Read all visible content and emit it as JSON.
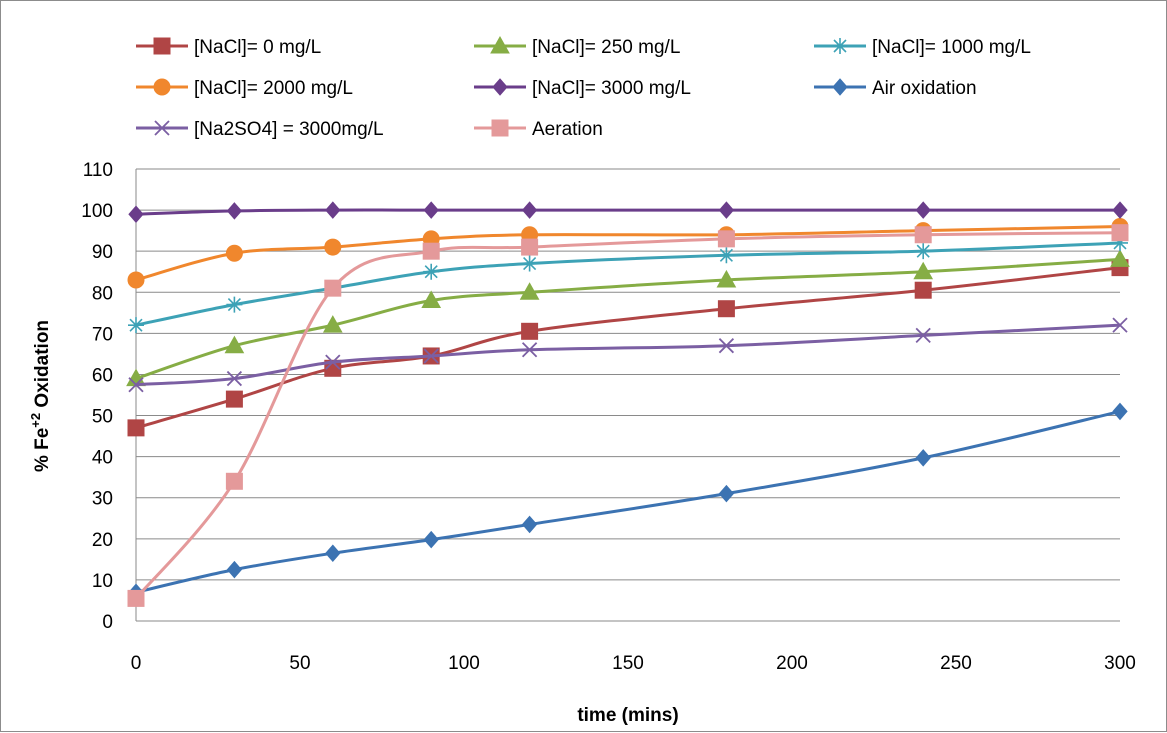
{
  "chart_data": {
    "type": "line",
    "xlabel": "time (mins)",
    "ylabel_main": "% Fe",
    "ylabel_sup": "+2",
    "ylabel_rest": " Oxidation",
    "xlim": [
      0,
      300
    ],
    "ylim": [
      0,
      110
    ],
    "xticks": [
      0,
      50,
      100,
      150,
      200,
      250,
      300
    ],
    "yticks": [
      0,
      10,
      20,
      30,
      40,
      50,
      60,
      70,
      80,
      90,
      100,
      110
    ],
    "grid": "horizontal",
    "legend_position": "top",
    "series": [
      {
        "name": "[NaCl]= 0 mg/L",
        "color": "#b04545",
        "marker": "square",
        "x": [
          0,
          30,
          60,
          90,
          120,
          180,
          240,
          300
        ],
        "y": [
          47,
          54,
          61.5,
          64.5,
          70.5,
          76,
          80.5,
          86
        ]
      },
      {
        "name": "[NaCl]= 250 mg/L",
        "color": "#86ad45",
        "marker": "triangle",
        "x": [
          0,
          30,
          60,
          90,
          120,
          180,
          240,
          300
        ],
        "y": [
          59,
          67,
          72,
          78,
          80,
          83,
          85,
          88
        ]
      },
      {
        "name": "[NaCl]= 1000 mg/L",
        "color": "#3da2b6",
        "marker": "asterisk",
        "x": [
          0,
          30,
          60,
          90,
          120,
          180,
          240,
          300
        ],
        "y": [
          72,
          77,
          81,
          85,
          87,
          89,
          90,
          92
        ]
      },
      {
        "name": "[NaCl]= 2000 mg/L",
        "color": "#f0872d",
        "marker": "circle",
        "x": [
          0,
          30,
          60,
          90,
          120,
          180,
          240,
          300
        ],
        "y": [
          83,
          89.5,
          91,
          93,
          94,
          94,
          95,
          96
        ]
      },
      {
        "name": "[NaCl]= 3000 mg/L",
        "color": "#6a3d8a",
        "marker": "diamond",
        "x": [
          0,
          30,
          60,
          90,
          120,
          180,
          240,
          300
        ],
        "y": [
          99,
          99.8,
          100,
          100,
          100,
          100,
          100,
          100
        ]
      },
      {
        "name": "Air oxidation",
        "color": "#3c73b2",
        "marker": "diamond",
        "x": [
          0,
          30,
          60,
          90,
          120,
          180,
          240,
          300
        ],
        "y": [
          7,
          12.5,
          16.5,
          19.8,
          23.5,
          31,
          39.7,
          51
        ]
      },
      {
        "name": "[Na2SO4] = 3000mg/L",
        "color": "#7b5fa3",
        "marker": "x",
        "x": [
          0,
          30,
          60,
          90,
          120,
          180,
          240,
          300
        ],
        "y": [
          57.5,
          59,
          63,
          64.5,
          66,
          67,
          69.5,
          72
        ]
      },
      {
        "name": "Aeration",
        "color": "#e4999a",
        "marker": "square",
        "x": [
          0,
          30,
          60,
          90,
          120,
          180,
          240,
          300
        ],
        "y": [
          5.5,
          34,
          81,
          90,
          91,
          93,
          94,
          94.5
        ]
      }
    ]
  }
}
